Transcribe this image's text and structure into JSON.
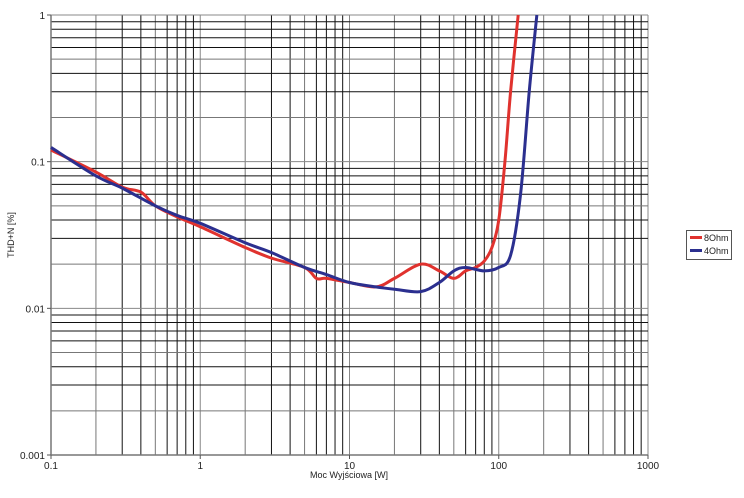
{
  "chart_data": {
    "type": "line",
    "title": "",
    "xlabel": "Moc Wyjściowa [W]",
    "ylabel": "THD+N [%]",
    "xscale": "log",
    "yscale": "log",
    "xlim": [
      0.1,
      1000
    ],
    "ylim": [
      0.001,
      1
    ],
    "xticks": [
      "0.1",
      "1",
      "10",
      "100",
      "1000"
    ],
    "yticks": [
      "0.001",
      "0.01",
      "0.1",
      "1"
    ],
    "grid": true,
    "legend_position": "right",
    "series": [
      {
        "name": "8Ohm",
        "color": "#e0322e",
        "x": [
          0.1,
          0.2,
          0.3,
          0.4,
          0.5,
          0.7,
          1,
          2,
          3,
          5,
          6,
          7,
          10,
          15,
          20,
          30,
          40,
          50,
          60,
          70,
          80,
          90,
          100,
          110,
          120,
          135
        ],
        "y": [
          0.12,
          0.085,
          0.067,
          0.062,
          0.05,
          0.042,
          0.036,
          0.026,
          0.022,
          0.019,
          0.016,
          0.016,
          0.015,
          0.014,
          0.016,
          0.02,
          0.018,
          0.016,
          0.018,
          0.019,
          0.021,
          0.026,
          0.04,
          0.1,
          0.3,
          1
        ]
      },
      {
        "name": "4Ohm",
        "color": "#2b2f8f",
        "x": [
          0.1,
          0.2,
          0.3,
          0.5,
          0.7,
          1,
          2,
          3,
          5,
          7,
          10,
          15,
          20,
          30,
          40,
          50,
          60,
          80,
          100,
          120,
          140,
          160,
          180
        ],
        "y": [
          0.125,
          0.08,
          0.066,
          0.05,
          0.043,
          0.038,
          0.028,
          0.024,
          0.019,
          0.017,
          0.015,
          0.014,
          0.0135,
          0.013,
          0.015,
          0.018,
          0.019,
          0.018,
          0.019,
          0.023,
          0.06,
          0.3,
          1
        ]
      }
    ]
  },
  "legend": {
    "items": [
      {
        "label": "8Ohm",
        "color": "#e0322e"
      },
      {
        "label": "4Ohm",
        "color": "#2b2f8f"
      }
    ]
  },
  "axes": {
    "xlabel": "Moc Wyjściowa [W]",
    "ylabel": "THD+N [%]"
  }
}
